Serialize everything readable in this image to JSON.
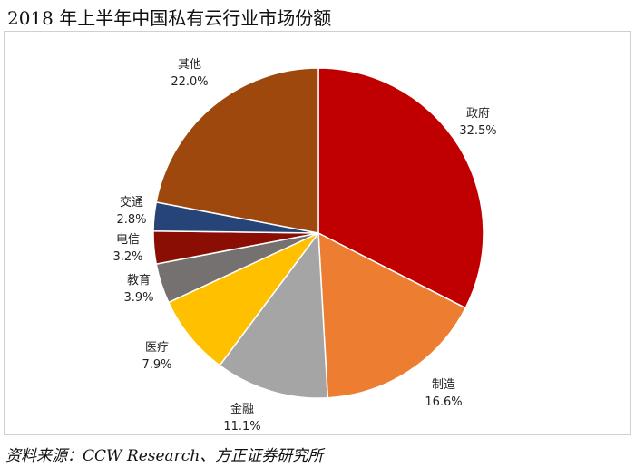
{
  "title": "2018 年上半年中国私有云行业市场份额",
  "source": "资料来源：CCW Research、方正证券研究所",
  "chart_data": {
    "type": "pie",
    "title": "2018 年上半年中国私有云行业市场份额",
    "slices": [
      {
        "label": "政府",
        "value": 32.5,
        "pct_label": "32.5%",
        "color": "#C00000"
      },
      {
        "label": "制造",
        "value": 16.6,
        "pct_label": "16.6%",
        "color": "#ED7D31"
      },
      {
        "label": "金融",
        "value": 11.1,
        "pct_label": "11.1%",
        "color": "#A5A5A5"
      },
      {
        "label": "医疗",
        "value": 7.9,
        "pct_label": "7.9%",
        "color": "#FFC000"
      },
      {
        "label": "教育",
        "value": 3.9,
        "pct_label": "3.9%",
        "color": "#767171"
      },
      {
        "label": "电信",
        "value": 3.2,
        "pct_label": "3.2%",
        "color": "#8B0E04"
      },
      {
        "label": "交通",
        "value": 2.8,
        "pct_label": "2.8%",
        "color": "#264478"
      },
      {
        "label": "其他",
        "value": 22.0,
        "pct_label": "22.0%",
        "color": "#9E480E"
      }
    ],
    "start": "12 o'clock",
    "direction": "clockwise"
  }
}
